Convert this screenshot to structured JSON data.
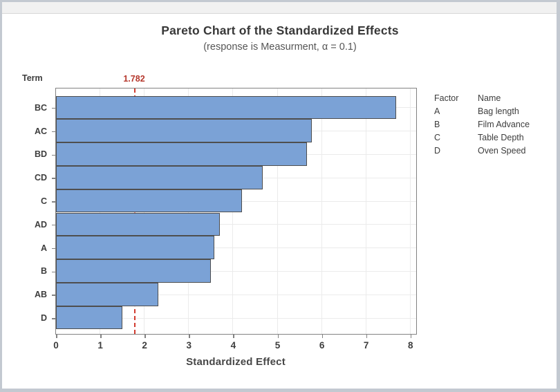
{
  "window": {
    "frame_color": "#c3c9d1",
    "titlebar_color": "#f1f1f1",
    "background": "#ffffff"
  },
  "chart_data": {
    "type": "bar",
    "orientation": "horizontal",
    "title": "Pareto Chart of the Standardized Effects",
    "subtitle": "(response is Measurment, α = 0.1)",
    "categories": [
      "BC",
      "AC",
      "BD",
      "CD",
      "C",
      "AD",
      "A",
      "B",
      "AB",
      "D"
    ],
    "values": [
      7.67,
      5.78,
      5.67,
      4.67,
      4.2,
      3.7,
      3.58,
      3.5,
      2.31,
      1.5
    ],
    "xlabel": "Standardized Effect",
    "ylabel": "Term",
    "xlim": [
      0,
      8.15
    ],
    "x_ticks": [
      0,
      1,
      2,
      3,
      4,
      5,
      6,
      7,
      8
    ],
    "reference_line": 1.782,
    "reference_line_label": "1.782",
    "grid": "on",
    "legend_position": "right",
    "bar_color": "#7ba2d6",
    "bar_border_color": "#4e4e4e",
    "reference_line_color": "#d13a2e",
    "reference_label_color": "#b5372c"
  },
  "legend": {
    "col_headers": [
      "Factor",
      "Name"
    ],
    "rows": [
      {
        "factor": "A",
        "name": "Bag length"
      },
      {
        "factor": "B",
        "name": "Film Advance"
      },
      {
        "factor": "C",
        "name": "Table Depth"
      },
      {
        "factor": "D",
        "name": "Oven Speed"
      }
    ]
  }
}
